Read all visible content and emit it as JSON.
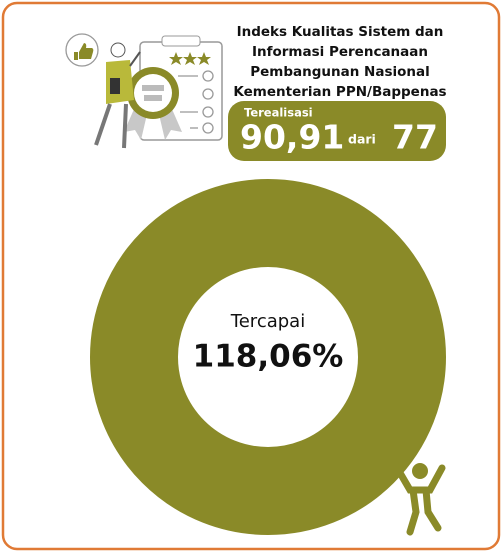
{
  "header": {
    "title_lines": [
      "Indeks Kualitas Sistem dan",
      "Informasi Perencanaan",
      "Pembangunan Nasional",
      "Kementerian PPN/Bappenas"
    ]
  },
  "realization": {
    "label": "Terealisasi",
    "value": "90,91",
    "connector": "dari",
    "target": "77"
  },
  "achievement": {
    "label": "Tercapai",
    "value": "118,06%"
  }
}
